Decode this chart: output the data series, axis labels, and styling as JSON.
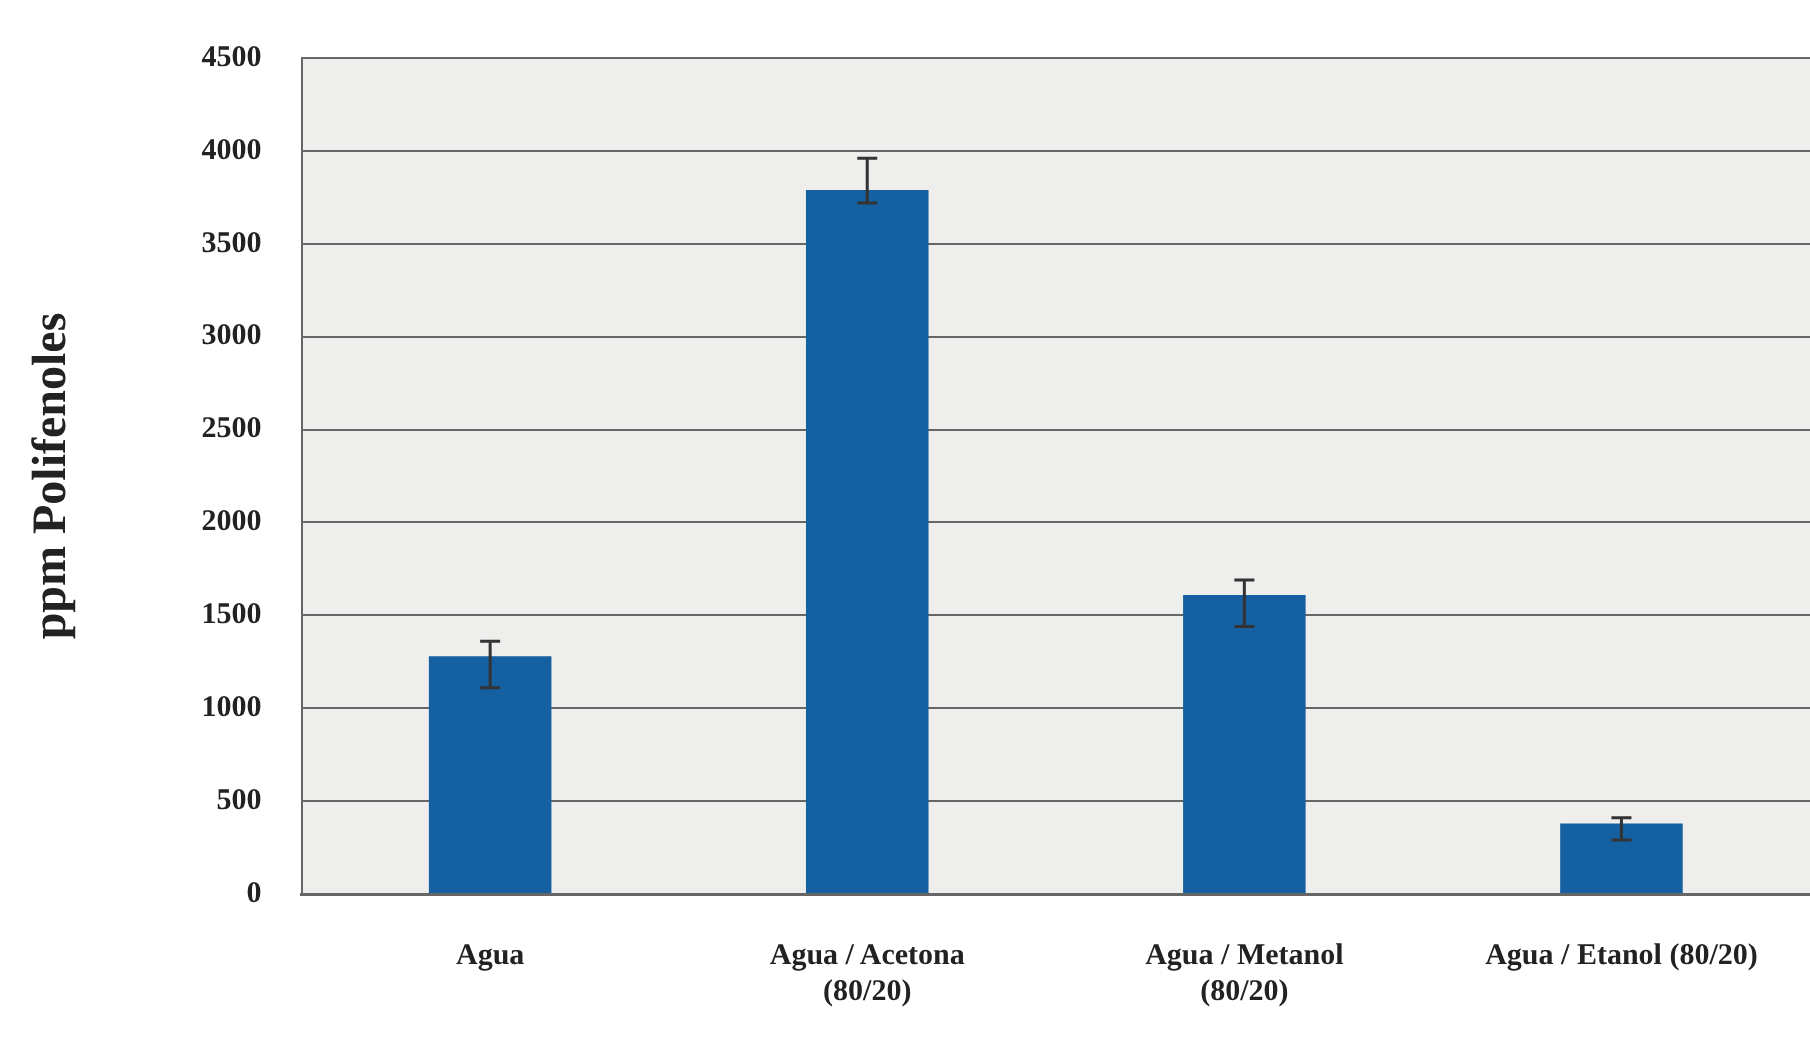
{
  "chart_data": {
    "type": "bar",
    "ylabel": "ppm Polifenoles",
    "categories": [
      "Agua",
      "Agua / Acetona (80/20)",
      "Agua / Metanol (80/20)",
      "Agua / Etanol (80/20)"
    ],
    "values": [
      1280,
      3790,
      1610,
      380
    ],
    "errors": [
      [
        1110,
        1360
      ],
      [
        3720,
        3960
      ],
      [
        1440,
        1690
      ],
      [
        290,
        410
      ]
    ],
    "color": "#1560a0",
    "ylim": [
      0,
      4500
    ],
    "yticks": [
      0,
      500,
      1000,
      1500,
      2000,
      2500,
      3000,
      3500,
      4000,
      4500
    ],
    "grid": "y"
  }
}
